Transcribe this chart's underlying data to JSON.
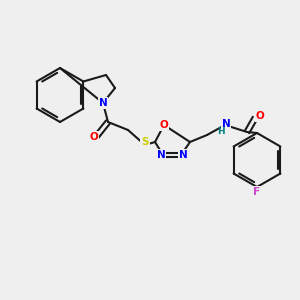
{
  "background_color": "#efefef",
  "bond_color": "#1a1a1a",
  "bond_lw": 1.5,
  "atom_colors": {
    "N": "#0000ff",
    "O": "#ff0000",
    "S": "#cccc00",
    "F": "#cc44cc",
    "H": "#008080",
    "C": "#1a1a1a"
  },
  "font_size": 7.5,
  "font_size_small": 6.5
}
